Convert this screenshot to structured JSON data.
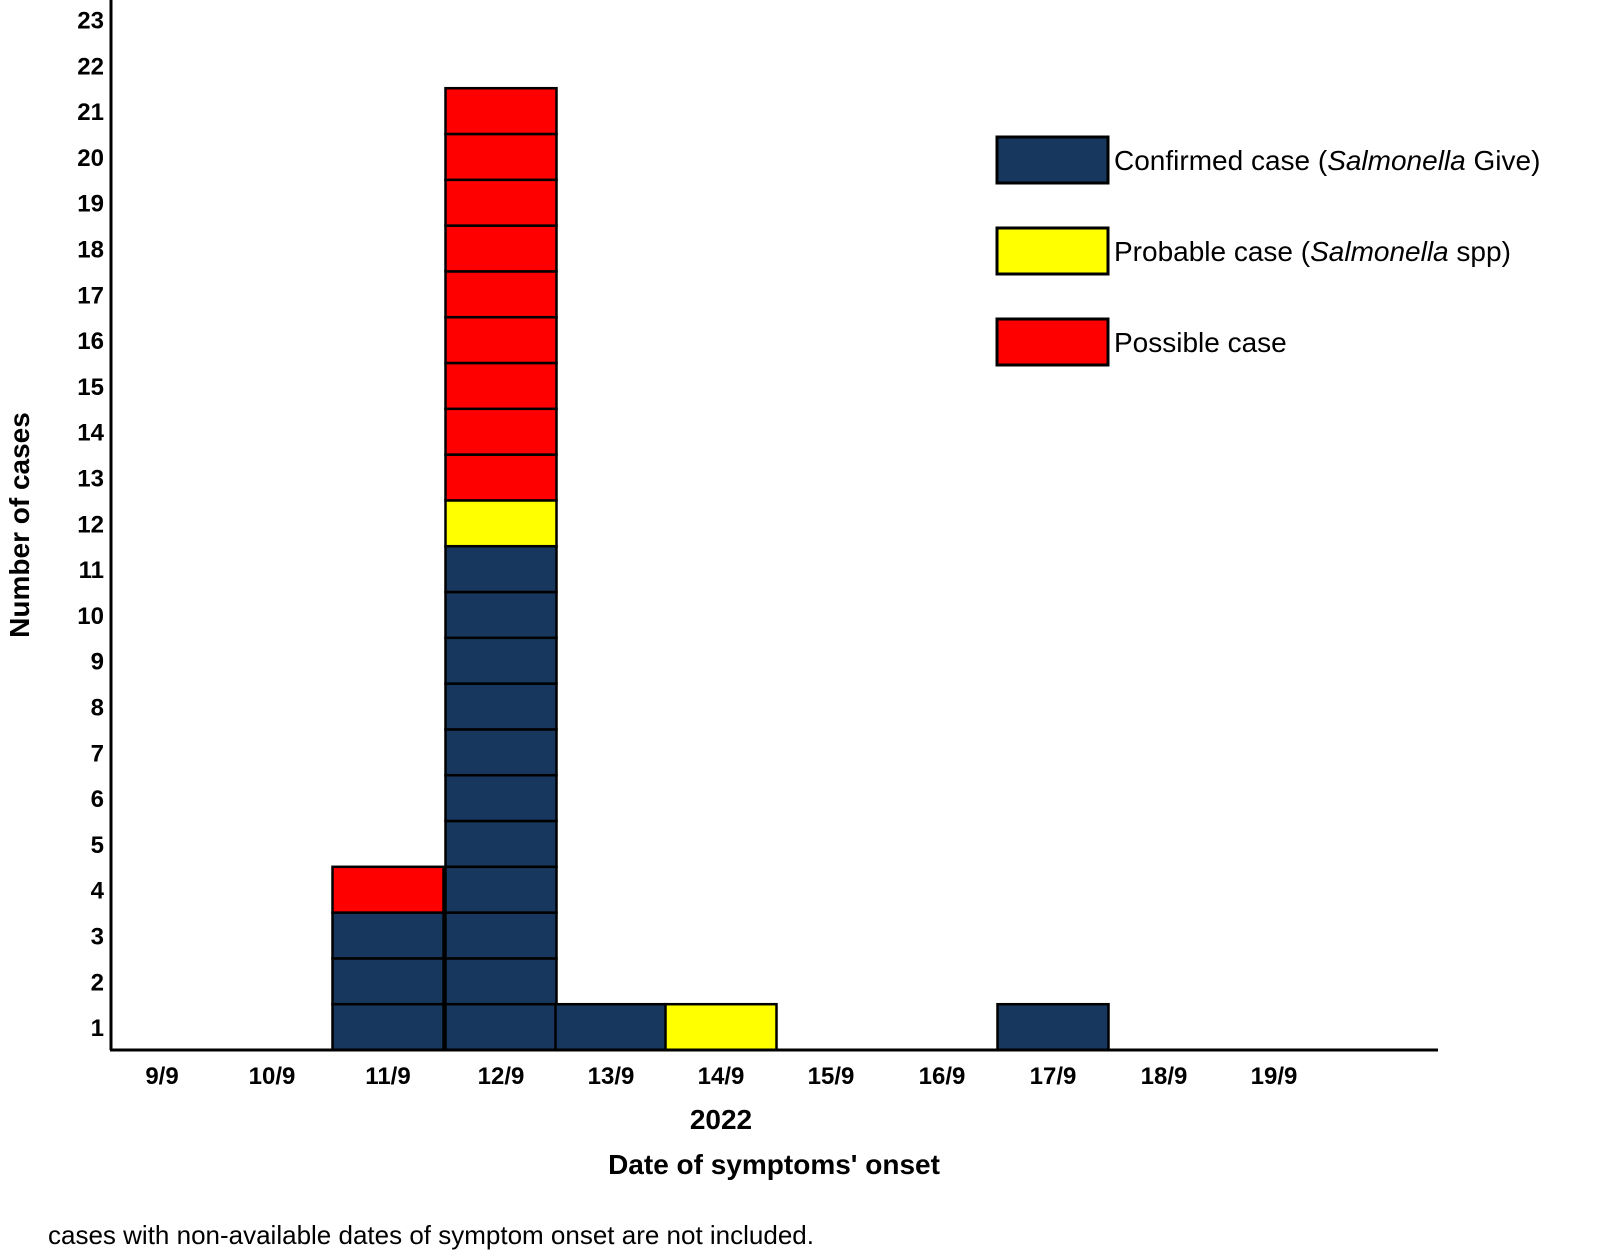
{
  "chart_data": {
    "type": "bar",
    "stacked": true,
    "style": "epicurve-one-box-per-case",
    "categories": [
      "9/9",
      "10/9",
      "11/9",
      "12/9",
      "13/9",
      "14/9",
      "15/9",
      "16/9",
      "17/9",
      "18/9",
      "19/9"
    ],
    "series": [
      {
        "name": "Confirmed case (Salmonella Give)",
        "color": "#17375e",
        "values": [
          0,
          0,
          3,
          11,
          1,
          0,
          0,
          0,
          1,
          0,
          0
        ]
      },
      {
        "name": "Probable case (Salmonella spp)",
        "color": "#ffff00",
        "values": [
          0,
          0,
          0,
          1,
          0,
          1,
          0,
          0,
          0,
          0,
          0
        ]
      },
      {
        "name": "Possible case",
        "color": "#ff0000",
        "values": [
          0,
          0,
          1,
          9,
          0,
          0,
          0,
          0,
          0,
          0,
          0
        ]
      }
    ],
    "legend": [
      {
        "prefix": "Confirmed case (",
        "italic": "Salmonella",
        "suffix": " Give)"
      },
      {
        "prefix": "Probable case (",
        "italic": "Salmonella",
        "suffix": " spp)"
      },
      {
        "prefix": "Possible case",
        "italic": "",
        "suffix": ""
      }
    ],
    "legend_position": "top-right",
    "y_ticks": [
      1,
      2,
      3,
      4,
      5,
      6,
      7,
      8,
      9,
      10,
      11,
      12,
      13,
      14,
      15,
      16,
      17,
      18,
      19,
      20,
      21,
      22,
      23
    ],
    "ylim": [
      0,
      23
    ],
    "ylabel": "Number of cases",
    "xlabel_year": "2022",
    "xlabel": "Date of symptoms' onset",
    "grid": false
  },
  "footnote": "cases with non-available dates of symptom onset are not included."
}
